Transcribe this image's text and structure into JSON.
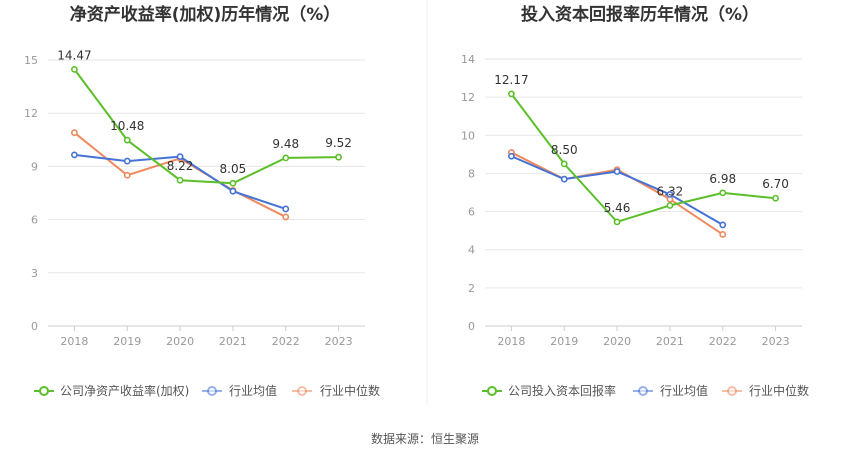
{
  "colors": {
    "company": "#5bbf2a",
    "industry_avg": "#4472d6",
    "industry_median": "#ef8a5e",
    "grid": "#e6e6e6",
    "axis": "#cccccc",
    "divider": "#eeeeee"
  },
  "legend": {
    "chart1_company": "公司净资产收益率(加权)",
    "chart2_company": "公司投入资本回报率",
    "industry_avg": "行业均值",
    "industry_median": "行业中位数"
  },
  "footer": {
    "source": "数据来源：恒生聚源"
  },
  "chart_data": [
    {
      "type": "line",
      "title": "净资产收益率(加权)历年情况（%）",
      "x": [
        "2018",
        "2019",
        "2020",
        "2021",
        "2022",
        "2023"
      ],
      "ylim": [
        0,
        15
      ],
      "yticks": [
        0,
        3,
        6,
        9,
        12,
        15
      ],
      "grid": true,
      "legend_position": "bottom",
      "series": [
        {
          "name": "公司净资产收益率(加权)",
          "color": "#5bbf2a",
          "values": [
            14.47,
            10.48,
            8.22,
            8.05,
            9.48,
            9.52
          ],
          "labels": [
            "14.47",
            "10.48",
            "8.22",
            "8.05",
            "9.48",
            "9.52"
          ]
        },
        {
          "name": "行业均值",
          "color": "#4472d6",
          "values": [
            9.65,
            9.3,
            9.55,
            7.6,
            6.6,
            null
          ]
        },
        {
          "name": "行业中位数",
          "color": "#ef8a5e",
          "values": [
            10.9,
            8.5,
            9.45,
            7.65,
            6.15,
            null
          ]
        }
      ]
    },
    {
      "type": "line",
      "title": "投入资本回报率历年情况（%）",
      "x": [
        "2018",
        "2019",
        "2020",
        "2021",
        "2022",
        "2023"
      ],
      "ylim": [
        0,
        14
      ],
      "yticks": [
        0,
        2,
        4,
        6,
        8,
        10,
        12,
        14
      ],
      "grid": true,
      "legend_position": "bottom",
      "series": [
        {
          "name": "公司投入资本回报率",
          "color": "#5bbf2a",
          "values": [
            12.17,
            8.5,
            5.46,
            6.32,
            6.98,
            6.7
          ],
          "labels": [
            "12.17",
            "8.50",
            "5.46",
            "6.32",
            "6.98",
            "6.70"
          ]
        },
        {
          "name": "行业均值",
          "color": "#4472d6",
          "values": [
            8.9,
            7.7,
            8.1,
            6.9,
            5.3,
            null
          ]
        },
        {
          "name": "行业中位数",
          "color": "#ef8a5e",
          "values": [
            9.1,
            7.7,
            8.2,
            6.65,
            4.8,
            null
          ]
        }
      ]
    }
  ]
}
